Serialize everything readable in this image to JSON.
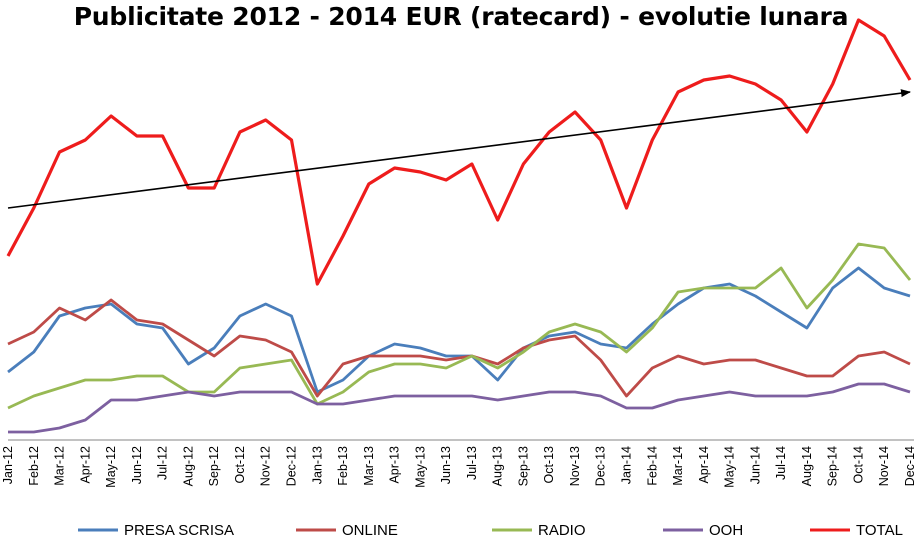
{
  "chart_data": {
    "type": "line",
    "title": "Publicitate 2012 - 2014 EUR (ratecard) - evolutie lunara",
    "xlabel": "",
    "ylabel": "",
    "ylim": [
      0,
      100
    ],
    "grid": false,
    "legend_position": "bottom",
    "categories": [
      "Jan-12",
      "Feb-12",
      "Mar-12",
      "Apr-12",
      "May-12",
      "Jun-12",
      "Jul-12",
      "Aug-12",
      "Sep-12",
      "Oct-12",
      "Nov-12",
      "Dec-12",
      "Jan-13",
      "Feb-13",
      "Mar-13",
      "Apr-13",
      "May-13",
      "Jun-13",
      "Jul-13",
      "Aug-13",
      "Sep-13",
      "Oct-13",
      "Nov-13",
      "Dec-13",
      "Jan-14",
      "Feb-14",
      "Mar-14",
      "Apr-14",
      "May-14",
      "Jun-14",
      "Jul-14",
      "Aug-14",
      "Sep-14",
      "Oct-14",
      "Nov-14",
      "Dec-14"
    ],
    "series": [
      {
        "name": "PRESA SCRISA",
        "color": "#4a7ebb",
        "values": [
          17,
          22,
          31,
          33,
          34,
          29,
          28,
          19,
          23,
          31,
          34,
          31,
          12,
          15,
          21,
          24,
          23,
          21,
          21,
          15,
          23,
          26,
          27,
          24,
          23,
          29,
          34,
          38,
          39,
          36,
          32,
          28,
          38,
          43,
          38,
          36
        ]
      },
      {
        "name": "ONLINE",
        "color": "#be4b48",
        "values": [
          24,
          27,
          33,
          30,
          35,
          30,
          29,
          25,
          21,
          26,
          25,
          22,
          11,
          19,
          21,
          21,
          21,
          20,
          21,
          19,
          23,
          25,
          26,
          20,
          11,
          18,
          21,
          19,
          20,
          20,
          18,
          16,
          16,
          21,
          22,
          19
        ]
      },
      {
        "name": "RADIO",
        "color": "#98b954",
        "values": [
          8,
          11,
          13,
          15,
          15,
          16,
          16,
          12,
          12,
          18,
          19,
          20,
          9,
          12,
          17,
          19,
          19,
          18,
          21,
          18,
          22,
          27,
          29,
          27,
          22,
          28,
          37,
          38,
          38,
          38,
          43,
          33,
          40,
          49,
          48,
          40
        ]
      },
      {
        "name": "OOH",
        "color": "#7d60a0",
        "values": [
          2,
          2,
          3,
          5,
          10,
          10,
          11,
          12,
          11,
          12,
          12,
          12,
          9,
          9,
          10,
          11,
          11,
          11,
          11,
          10,
          11,
          12,
          12,
          11,
          8,
          8,
          10,
          11,
          12,
          11,
          11,
          11,
          12,
          14,
          14,
          12
        ]
      },
      {
        "name": "TOTAL",
        "color": "#ee1c1c",
        "values": [
          46,
          58,
          72,
          75,
          81,
          76,
          76,
          63,
          63,
          77,
          80,
          75,
          39,
          51,
          64,
          68,
          67,
          65,
          69,
          55,
          69,
          77,
          82,
          75,
          58,
          75,
          87,
          90,
          91,
          89,
          85,
          77,
          89,
          105,
          101,
          90
        ]
      }
    ],
    "annotations": [
      {
        "type": "trend-arrow",
        "from": {
          "x": "Jan-12",
          "y": 58
        },
        "to": {
          "x": "Dec-14",
          "y": 87
        }
      }
    ]
  }
}
